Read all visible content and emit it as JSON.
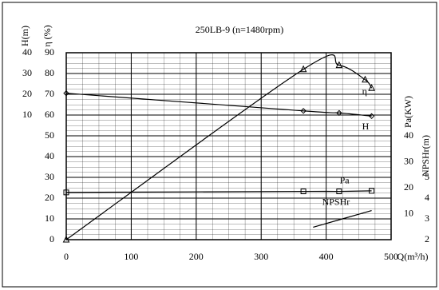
{
  "chart_data": {
    "type": "line",
    "title": "250LB-9 (n=1480rpm)",
    "x_label": "Q(m³/h)",
    "xlim": [
      0,
      500
    ],
    "xticks": [
      0,
      100,
      200,
      300,
      400,
      500
    ],
    "grid": true,
    "y_axes": [
      {
        "label": "H(m)",
        "lim": [
          -50,
          40
        ],
        "ticks": [
          10,
          20,
          30,
          40
        ],
        "side": "left"
      },
      {
        "label": "η (%)",
        "lim": [
          0,
          90
        ],
        "ticks": [
          0,
          10,
          20,
          30,
          40,
          50,
          60,
          70,
          80,
          90
        ],
        "side": "left"
      },
      {
        "label": "Pa(KW)",
        "lim": [
          0,
          72
        ],
        "ticks": [
          10,
          20,
          30,
          40
        ],
        "side": "right"
      },
      {
        "label": "NPSHr(m)",
        "lim": [
          2,
          11
        ],
        "ticks": [
          2,
          3,
          4,
          5
        ],
        "side": "right"
      }
    ],
    "series": [
      {
        "name": "η",
        "axis": 1,
        "color": "#000000",
        "marker": "triangle",
        "x": [
          0,
          365,
          420,
          460,
          470
        ],
        "values": [
          0,
          82,
          84,
          77,
          73
        ]
      },
      {
        "name": "H",
        "axis": 0,
        "color": "#000000",
        "marker": "diamond",
        "x": [
          0,
          365,
          420,
          470
        ],
        "values": [
          20.5,
          12,
          11,
          9.5
        ]
      },
      {
        "name": "Pa",
        "axis": 2,
        "color": "#000000",
        "marker": "square",
        "x": [
          0,
          365,
          420,
          470
        ],
        "values": [
          18.2,
          18.6,
          18.6,
          18.8
        ]
      },
      {
        "name": "NPSHr",
        "axis": 3,
        "color": "#000000",
        "marker": "none",
        "x": [
          380,
          470
        ],
        "values": [
          2.6,
          3.4
        ]
      }
    ]
  }
}
